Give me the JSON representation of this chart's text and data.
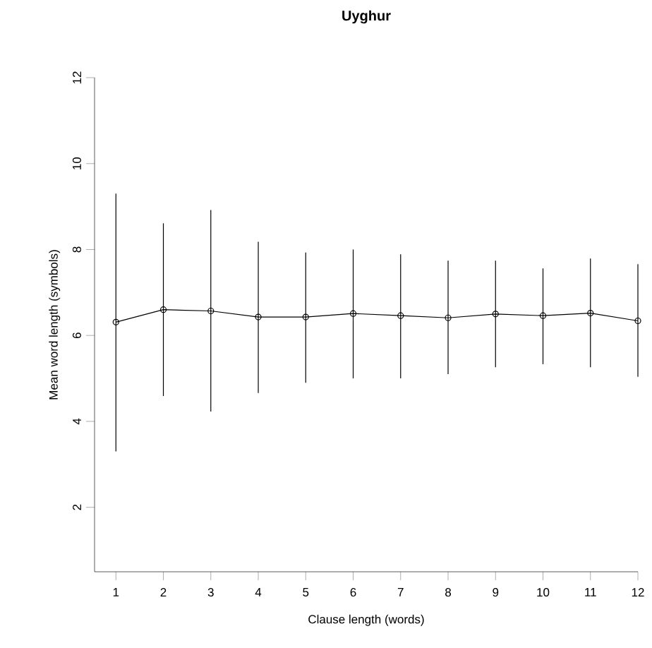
{
  "chart_data": {
    "type": "line",
    "title": "Uyghur",
    "xlabel": "Clause length (words)",
    "ylabel": "Mean word length (symbols)",
    "x": [
      1,
      2,
      3,
      4,
      5,
      6,
      7,
      8,
      9,
      10,
      11,
      12
    ],
    "values": [
      6.31,
      6.6,
      6.57,
      6.43,
      6.43,
      6.51,
      6.46,
      6.41,
      6.5,
      6.46,
      6.52,
      6.34
    ],
    "errors": [
      [
        3.3,
        9.3
      ],
      [
        4.59,
        8.61
      ],
      [
        4.23,
        8.92
      ],
      [
        4.66,
        8.18
      ],
      [
        4.9,
        7.93
      ],
      [
        5.0,
        8.0
      ],
      [
        5.0,
        7.89
      ],
      [
        5.1,
        7.74
      ],
      [
        5.26,
        7.74
      ],
      [
        5.33,
        7.56
      ],
      [
        5.26,
        7.79
      ],
      [
        5.04,
        7.66
      ]
    ],
    "color": "#000000",
    "marker": "circle",
    "line_style": "solid",
    "xlim": [
      0.55,
      12
    ],
    "ylim": [
      0.5,
      12
    ],
    "xticks": [
      1,
      2,
      3,
      4,
      5,
      6,
      7,
      8,
      9,
      10,
      11,
      12
    ],
    "yticks": [
      2,
      4,
      6,
      8,
      10,
      12
    ]
  }
}
